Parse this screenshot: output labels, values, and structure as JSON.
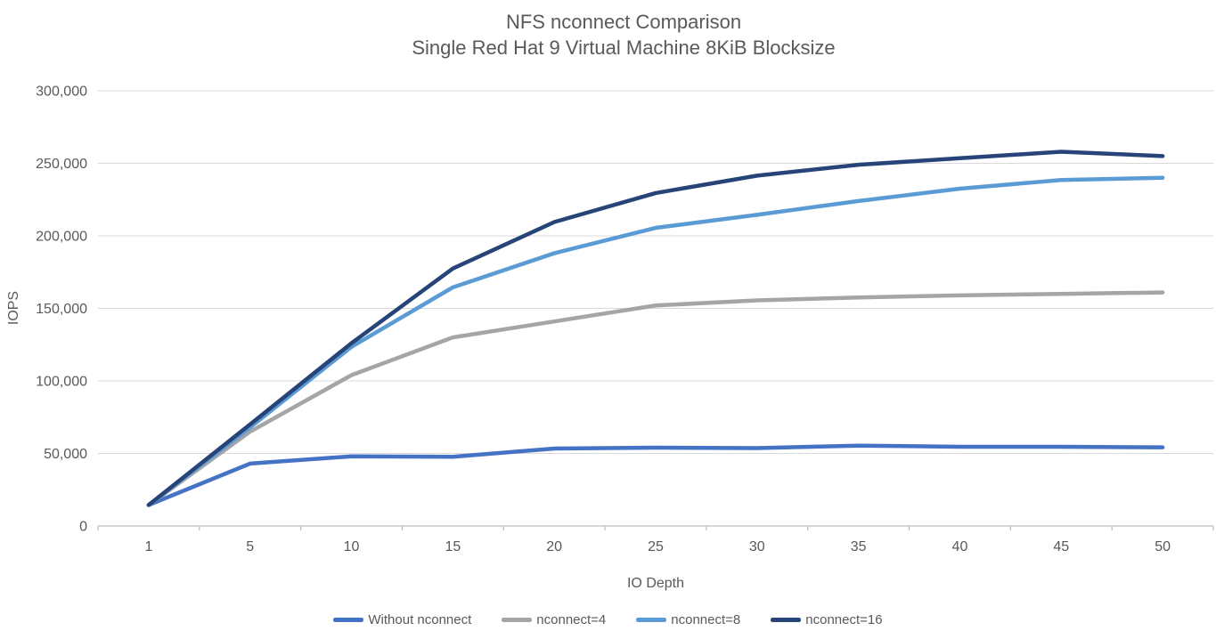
{
  "chart_data": {
    "type": "line",
    "title": "NFS nconnect Comparison",
    "subtitle": "Single Red Hat 9 Virtual Machine 8KiB Blocksize",
    "xlabel": "IO Depth",
    "ylabel": "IOPS",
    "x": [
      "1",
      "5",
      "10",
      "15",
      "20",
      "25",
      "30",
      "35",
      "40",
      "45",
      "50"
    ],
    "ylim": [
      0,
      300000
    ],
    "ytick_step": 50000,
    "ytick_labels": [
      "0",
      "50,000",
      "100,000",
      "150,000",
      "200,000",
      "250,000",
      "300,000"
    ],
    "grid": "horizontal",
    "legend_position": "bottom",
    "series": [
      {
        "name": "Without nconnect",
        "color": "#4472C4",
        "values": [
          14500,
          43000,
          48000,
          47700,
          53400,
          54000,
          53700,
          55400,
          54600,
          54600,
          54200
        ]
      },
      {
        "name": "nconnect=4",
        "color": "#A5A5A5",
        "values": [
          14500,
          65000,
          104000,
          130000,
          141000,
          152000,
          155500,
          157500,
          159000,
          160000,
          161000
        ]
      },
      {
        "name": "nconnect=8",
        "color": "#5B9BD5",
        "values": [
          14500,
          68000,
          123500,
          164500,
          188000,
          205500,
          214500,
          224000,
          232500,
          238500,
          240000
        ]
      },
      {
        "name": "nconnect=16",
        "color": "#264478",
        "values": [
          14500,
          70000,
          126000,
          177500,
          209500,
          229500,
          241500,
          249000,
          253500,
          258000,
          255000
        ]
      }
    ],
    "colors": {
      "grid": "#D9D9D9",
      "axis": "#BFBFBF",
      "text": "#595959"
    }
  }
}
